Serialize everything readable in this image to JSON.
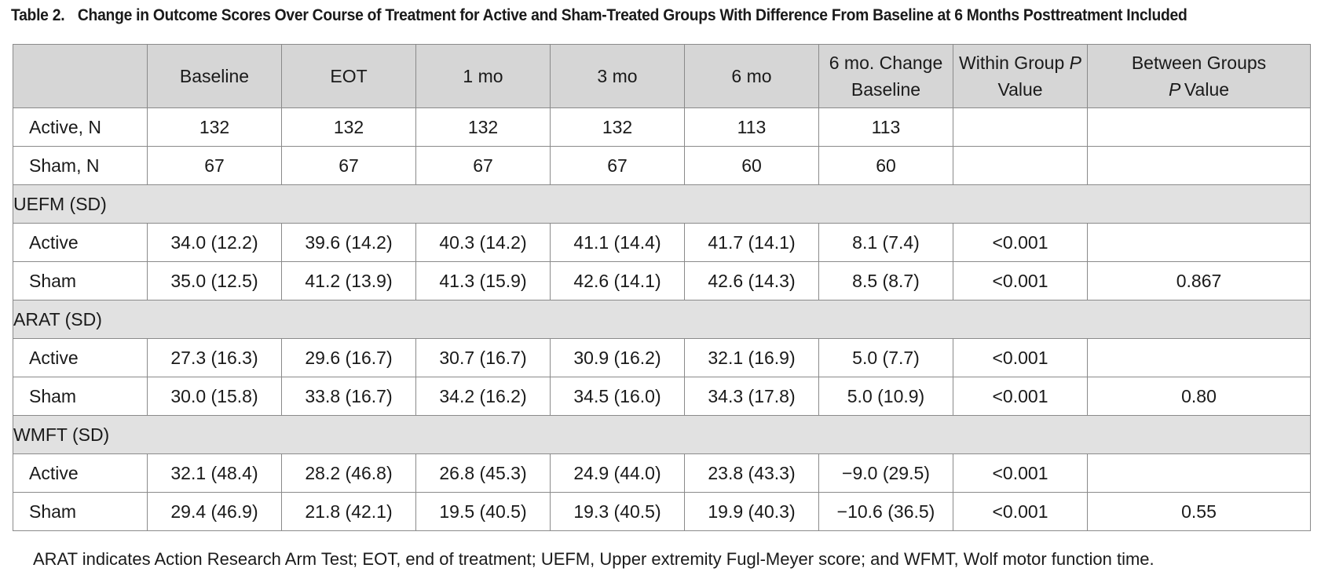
{
  "title": {
    "number": "Table 2.",
    "text": "Change in Outcome Scores Over Course of Treatment for Active and Sham-Treated Groups With Difference From Baseline at 6 Months Posttreatment Included"
  },
  "headers": {
    "blank": "",
    "baseline": "Baseline",
    "eot": "EOT",
    "m1": "1 mo",
    "m3": "3 mo",
    "m6": "6 mo",
    "change_line1": "6 mo. Change",
    "change_line2": "Baseline",
    "within_a": "Within Group ",
    "within_p": "P",
    "within_b": "Value",
    "between_a": "Between Groups",
    "between_p": "P",
    "between_b": "Value"
  },
  "counts": [
    {
      "label": "Active, N",
      "baseline": "132",
      "eot": "132",
      "m1": "132",
      "m3": "132",
      "m6": "113",
      "change": "113",
      "within": "",
      "between": ""
    },
    {
      "label": "Sham, N",
      "baseline": "67",
      "eot": "67",
      "m1": "67",
      "m3": "67",
      "m6": "60",
      "change": "60",
      "within": "",
      "between": ""
    }
  ],
  "sections": [
    {
      "title": "UEFM (SD)",
      "rows": [
        {
          "label": "Active",
          "baseline": "34.0 (12.2)",
          "eot": "39.6 (14.2)",
          "m1": "40.3 (14.2)",
          "m3": "41.1 (14.4)",
          "m6": "41.7 (14.1)",
          "change": "8.1 (7.4)",
          "within": "<0.001",
          "between": ""
        },
        {
          "label": "Sham",
          "baseline": "35.0 (12.5)",
          "eot": "41.2 (13.9)",
          "m1": "41.3 (15.9)",
          "m3": "42.6 (14.1)",
          "m6": "42.6 (14.3)",
          "change": "8.5 (8.7)",
          "within": "<0.001",
          "between": "0.867"
        }
      ]
    },
    {
      "title": "ARAT (SD)",
      "rows": [
        {
          "label": "Active",
          "baseline": "27.3 (16.3)",
          "eot": "29.6 (16.7)",
          "m1": "30.7 (16.7)",
          "m3": "30.9 (16.2)",
          "m6": "32.1 (16.9)",
          "change": "5.0 (7.7)",
          "within": "<0.001",
          "between": ""
        },
        {
          "label": "Sham",
          "baseline": "30.0 (15.8)",
          "eot": "33.8 (16.7)",
          "m1": "34.2 (16.2)",
          "m3": "34.5 (16.0)",
          "m6": "34.3 (17.8)",
          "change": "5.0 (10.9)",
          "within": "<0.001",
          "between": "0.80"
        }
      ]
    },
    {
      "title": "WMFT (SD)",
      "rows": [
        {
          "label": "Active",
          "baseline": "32.1 (48.4)",
          "eot": "28.2 (46.8)",
          "m1": "26.8 (45.3)",
          "m3": "24.9 (44.0)",
          "m6": "23.8 (43.3)",
          "change": "−9.0 (29.5)",
          "within": "<0.001",
          "between": ""
        },
        {
          "label": "Sham",
          "baseline": "29.4 (46.9)",
          "eot": "21.8 (42.1)",
          "m1": "19.5 (40.5)",
          "m3": "19.3 (40.5)",
          "m6": "19.9 (40.3)",
          "change": "−10.6 (36.5)",
          "within": "<0.001",
          "between": "0.55"
        }
      ]
    }
  ],
  "footnote": "ARAT indicates Action Research Arm Test; EOT, end of treatment; UEFM, Upper extremity Fugl-Meyer score; and WFMT, Wolf motor function time."
}
